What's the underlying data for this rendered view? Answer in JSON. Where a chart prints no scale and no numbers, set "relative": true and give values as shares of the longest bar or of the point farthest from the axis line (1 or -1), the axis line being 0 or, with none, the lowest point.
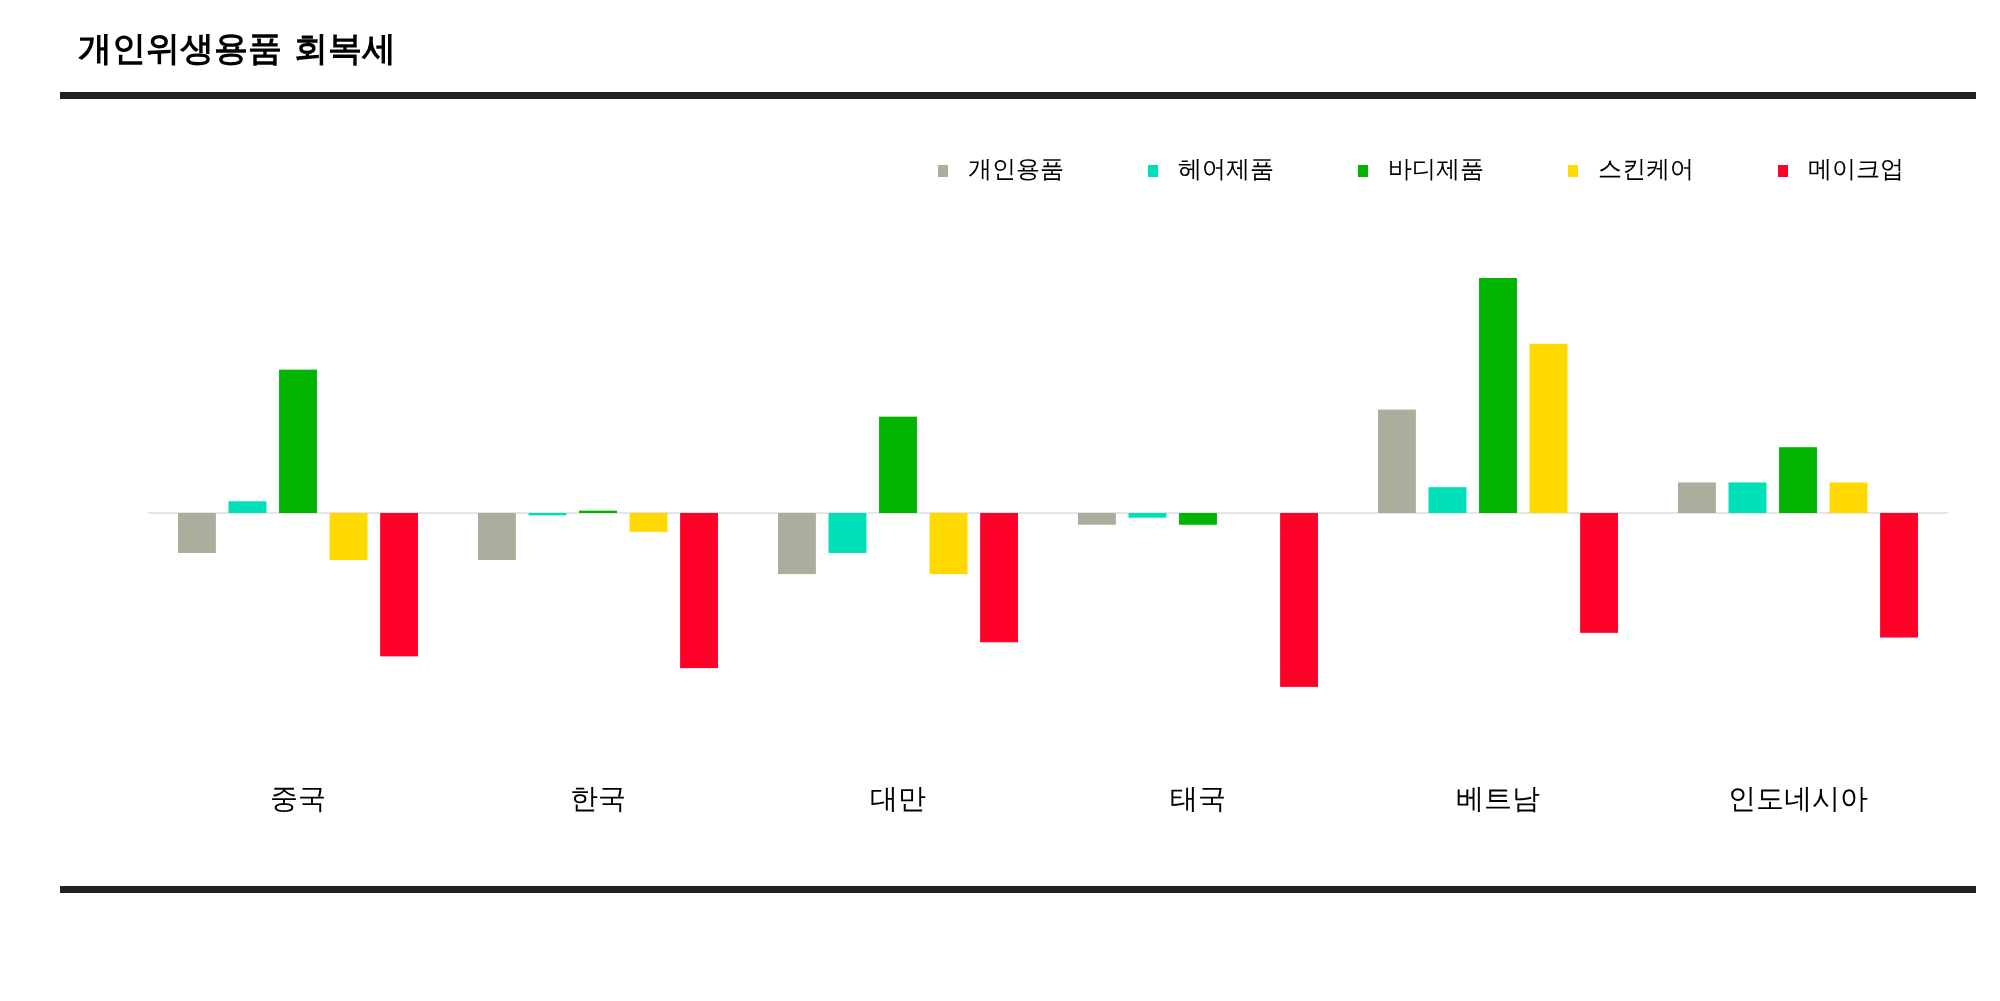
{
  "chart_data": {
    "type": "bar",
    "title": "개인위생용품 회복세",
    "relative": true,
    "legend": "top right",
    "categories": [
      "중국",
      "한국",
      "대만",
      "태국",
      "베트남",
      "인도네시아"
    ],
    "series": [
      {
        "name": "개인용품",
        "color": "#adad9e",
        "values": [
          -0.17,
          -0.2,
          -0.26,
          -0.05,
          0.44,
          0.13
        ]
      },
      {
        "name": "헤어제품",
        "color": "#00e0b8",
        "values": [
          0.05,
          -0.01,
          -0.17,
          -0.02,
          0.11,
          0.13
        ]
      },
      {
        "name": "바디제품",
        "color": "#00b400",
        "values": [
          0.61,
          0.01,
          0.41,
          -0.05,
          1,
          0.28
        ]
      },
      {
        "name": "스킨케어",
        "color": "#ffd900",
        "values": [
          -0.2,
          -0.08,
          -0.26,
          null,
          0.72,
          0.13
        ]
      },
      {
        "name": "메이크업",
        "color": "#ff0028",
        "values": [
          -0.61,
          -0.66,
          -0.55,
          -0.74,
          -0.51,
          -0.53
        ]
      }
    ]
  }
}
